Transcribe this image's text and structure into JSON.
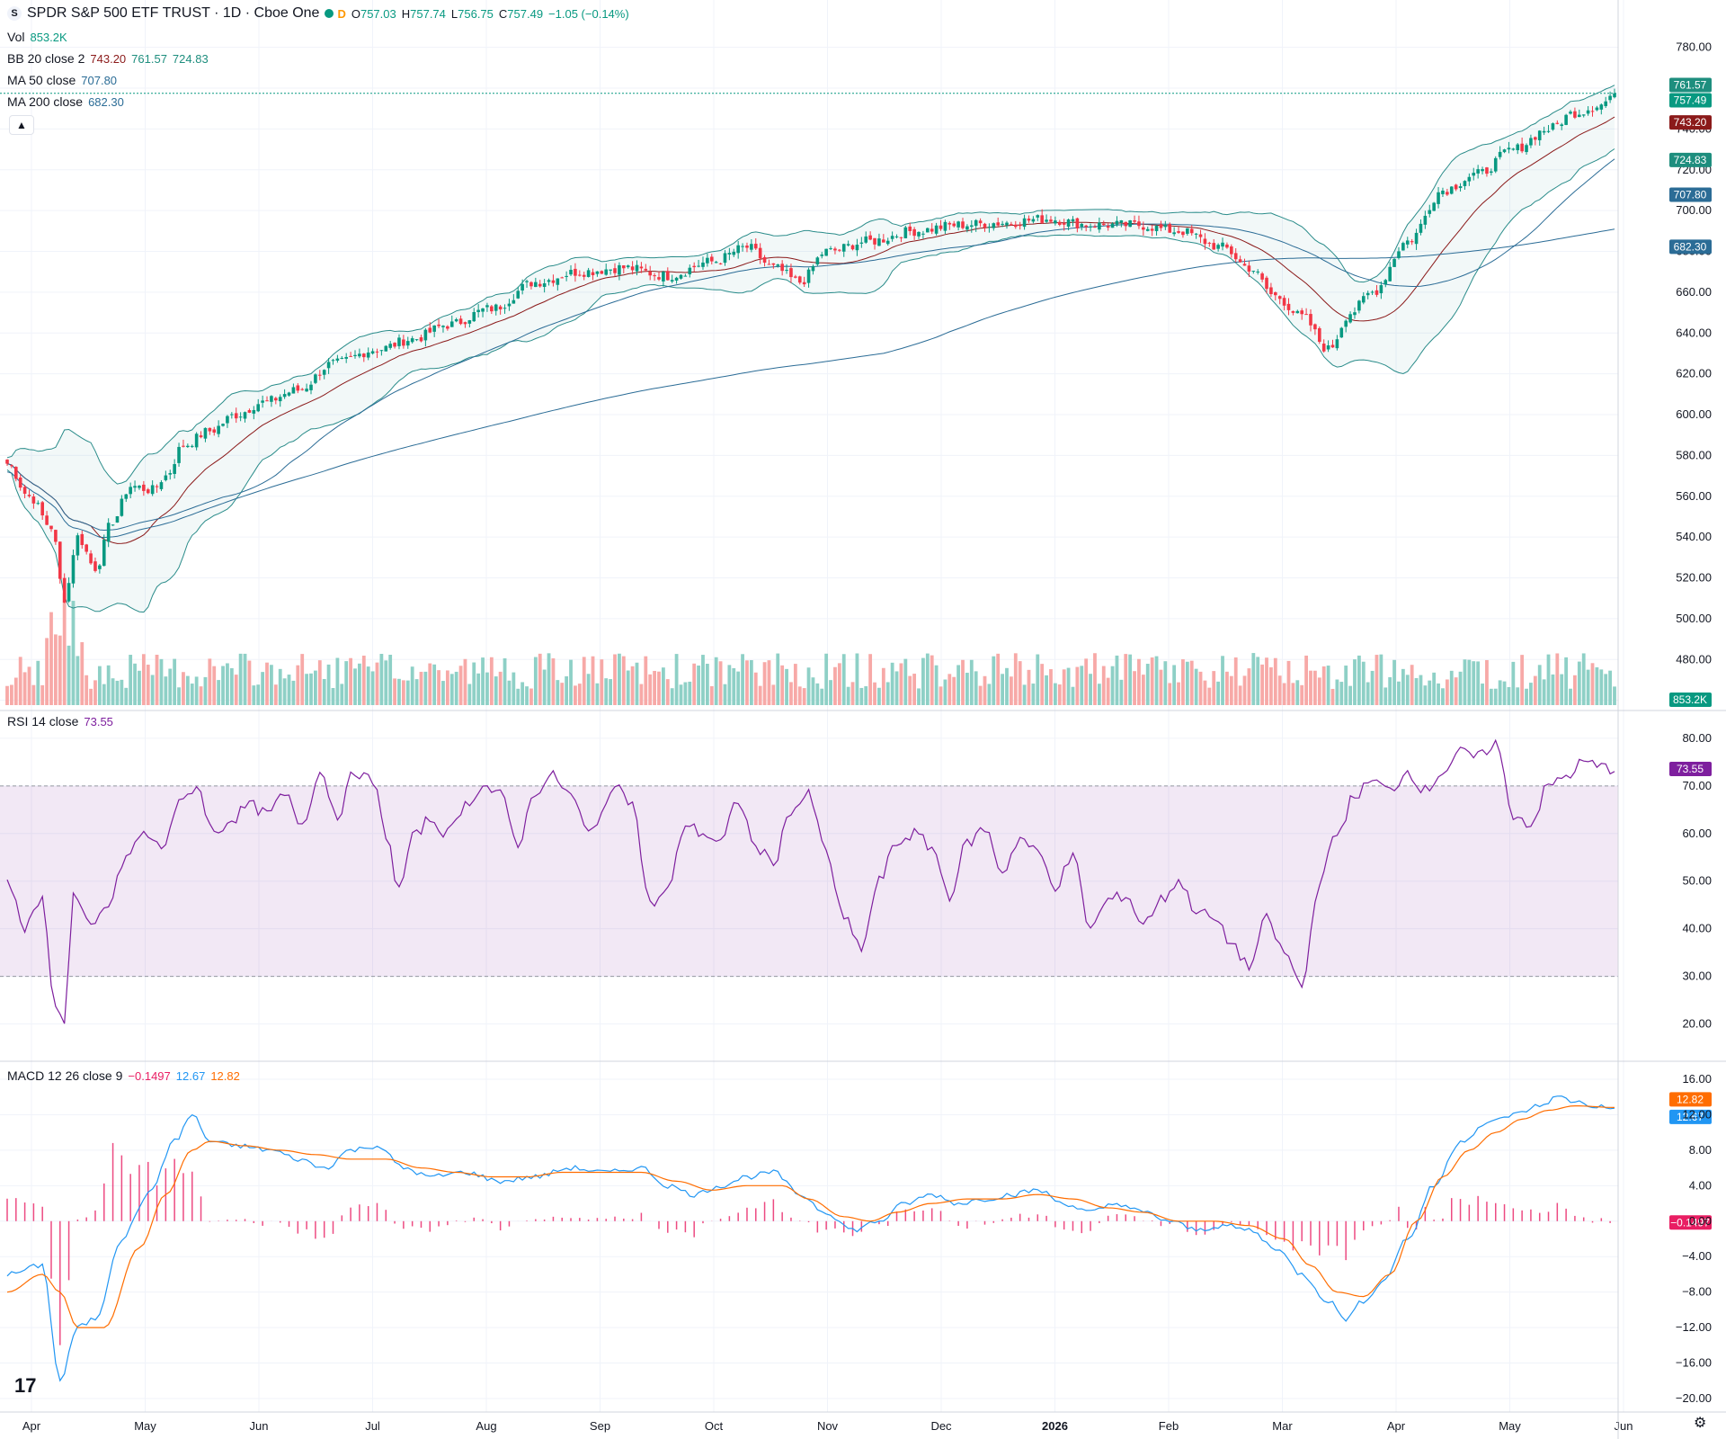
{
  "header": {
    "symbol_logo": "S",
    "title": "SPDR S&P 500 ETF TRUST · 1D · Cboe One",
    "badge": "D",
    "ohlc": {
      "o_label": "O",
      "o": "757.03",
      "h_label": "H",
      "h": "757.74",
      "l_label": "L",
      "l": "756.75",
      "c_label": "C",
      "c": "757.49",
      "chg": "−1.05 (−0.14%)"
    },
    "vol_label": "Vol",
    "vol_value": "853.2K",
    "bb_label": "BB 20 close 2",
    "bb_mid": "743.20",
    "bb_up": "761.57",
    "bb_low": "724.83",
    "ma50_label": "MA 50 close",
    "ma50_value": "707.80",
    "ma200_label": "MA 200 close",
    "ma200_value": "682.30",
    "rsi_label": "RSI 14 close",
    "rsi_value": "73.55",
    "macd_label": "MACD 12 26 close 9",
    "macd_hist": "−0.1497",
    "macd_line": "12.67",
    "macd_signal": "12.82",
    "collapse_icon": "chevron-up-icon"
  },
  "colors": {
    "up": "#089981",
    "down": "#f23645",
    "vol_up": "#8ed0c6",
    "vol_down": "#f7a9a7",
    "bb_band": "#2a8c8a",
    "bb_basis": "#8b1a1a",
    "ma50": "#2b6c96",
    "ma200": "#2b6c96",
    "rsi": "#7e1f9e",
    "macd": "#2196f3",
    "signal": "#ff6d00",
    "hist_pos": "#e91e63",
    "hist_neg": "#e91e63"
  },
  "chart_data": [
    {
      "type": "candlestick",
      "title": "SPDR S&P 500 ETF TRUST · 1D · Cboe One",
      "x_labels": [
        "Apr",
        "May",
        "Jun",
        "Jul",
        "Aug",
        "Sep",
        "Oct",
        "Nov",
        "Dec",
        "2026",
        "Feb",
        "Mar",
        "Apr",
        "May",
        "Jun"
      ],
      "price_ticks": [
        "780.00",
        "760.00",
        "740.00",
        "720.00",
        "700.00",
        "680.00",
        "660.00",
        "640.00",
        "620.00",
        "600.00",
        "580.00",
        "560.00",
        "540.00",
        "520.00",
        "500.00",
        "480.00",
        "460.00"
      ],
      "ylim": [
        460,
        790
      ],
      "close_anchors": [
        [
          0,
          576
        ],
        [
          5,
          560
        ],
        [
          10,
          545
        ],
        [
          13,
          510
        ],
        [
          16,
          540
        ],
        [
          20,
          525
        ],
        [
          24,
          548
        ],
        [
          28,
          565
        ],
        [
          33,
          563
        ],
        [
          36,
          570
        ],
        [
          40,
          585
        ],
        [
          46,
          592
        ],
        [
          52,
          600
        ],
        [
          58,
          606
        ],
        [
          66,
          612
        ],
        [
          74,
          625
        ],
        [
          84,
          632
        ],
        [
          92,
          637
        ],
        [
          100,
          644
        ],
        [
          110,
          652
        ],
        [
          120,
          665
        ],
        [
          130,
          670
        ],
        [
          140,
          672
        ],
        [
          150,
          668
        ],
        [
          160,
          675
        ],
        [
          168,
          682
        ],
        [
          174,
          672
        ],
        [
          180,
          665
        ],
        [
          186,
          680
        ],
        [
          196,
          685
        ],
        [
          206,
          690
        ],
        [
          216,
          693
        ],
        [
          226,
          694
        ],
        [
          236,
          696
        ],
        [
          246,
          693
        ],
        [
          256,
          693
        ],
        [
          266,
          690
        ],
        [
          276,
          682
        ],
        [
          282,
          672
        ],
        [
          288,
          658
        ],
        [
          294,
          648
        ],
        [
          300,
          632
        ],
        [
          305,
          650
        ],
        [
          310,
          660
        ],
        [
          318,
          685
        ],
        [
          326,
          710
        ],
        [
          334,
          718
        ],
        [
          342,
          730
        ],
        [
          350,
          740
        ],
        [
          356,
          748
        ],
        [
          362,
          752
        ],
        [
          365,
          757.49
        ]
      ],
      "price_labels": [
        {
          "name": "BB upper",
          "value": "761.57",
          "price": 761.57,
          "color": "#1e8e7e"
        },
        {
          "name": "Last",
          "value": "757.49",
          "price": 757.49,
          "color": "#089981"
        },
        {
          "name": "BB basis",
          "value": "743.20",
          "price": 743.2,
          "color": "#8b1a1a"
        },
        {
          "name": "BB lower",
          "value": "724.83",
          "price": 724.83,
          "color": "#1e8e7e"
        },
        {
          "name": "MA 50",
          "value": "707.80",
          "price": 707.8,
          "color": "#2b6c96"
        },
        {
          "name": "MA 200",
          "value": "682.30",
          "price": 682.3,
          "color": "#2b6c96"
        }
      ],
      "volume_label": "853.2K"
    },
    {
      "type": "line",
      "name": "RSI 14 close",
      "ticks": [
        "80.00",
        "70.00",
        "60.00",
        "50.00",
        "40.00",
        "30.00",
        "20.00"
      ],
      "ylim": [
        15,
        83
      ],
      "bands": [
        70,
        30
      ],
      "value_label": "73.55",
      "anchors": [
        [
          0,
          50
        ],
        [
          4,
          40
        ],
        [
          8,
          46
        ],
        [
          11,
          23
        ],
        [
          13,
          21
        ],
        [
          15,
          47
        ],
        [
          19,
          40
        ],
        [
          23,
          45
        ],
        [
          27,
          55
        ],
        [
          31,
          60
        ],
        [
          35,
          57
        ],
        [
          39,
          66
        ],
        [
          43,
          70
        ],
        [
          47,
          60
        ],
        [
          51,
          63
        ],
        [
          55,
          66
        ],
        [
          59,
          64
        ],
        [
          63,
          68
        ],
        [
          67,
          62
        ],
        [
          71,
          73
        ],
        [
          75,
          64
        ],
        [
          79,
          73
        ],
        [
          83,
          71
        ],
        [
          86,
          60
        ],
        [
          89,
          48
        ],
        [
          92,
          59
        ],
        [
          96,
          63
        ],
        [
          100,
          60
        ],
        [
          104,
          66
        ],
        [
          108,
          70
        ],
        [
          112,
          68
        ],
        [
          116,
          58
        ],
        [
          120,
          69
        ],
        [
          124,
          72
        ],
        [
          128,
          68
        ],
        [
          132,
          60
        ],
        [
          136,
          66
        ],
        [
          139,
          71
        ],
        [
          142,
          66
        ],
        [
          146,
          45
        ],
        [
          150,
          48
        ],
        [
          154,
          62
        ],
        [
          158,
          60
        ],
        [
          162,
          58
        ],
        [
          166,
          67
        ],
        [
          170,
          57
        ],
        [
          174,
          54
        ],
        [
          178,
          65
        ],
        [
          182,
          68
        ],
        [
          186,
          56
        ],
        [
          190,
          42
        ],
        [
          194,
          36
        ],
        [
          198,
          50
        ],
        [
          202,
          58
        ],
        [
          206,
          60
        ],
        [
          210,
          57
        ],
        [
          214,
          47
        ],
        [
          218,
          58
        ],
        [
          222,
          61
        ],
        [
          226,
          52
        ],
        [
          230,
          59
        ],
        [
          234,
          56
        ],
        [
          238,
          49
        ],
        [
          242,
          55
        ],
        [
          246,
          40
        ],
        [
          250,
          46
        ],
        [
          254,
          47
        ],
        [
          258,
          41
        ],
        [
          262,
          46
        ],
        [
          266,
          50
        ],
        [
          270,
          44
        ],
        [
          274,
          42
        ],
        [
          278,
          37
        ],
        [
          282,
          32
        ],
        [
          286,
          42
        ],
        [
          290,
          35
        ],
        [
          294,
          28
        ],
        [
          298,
          50
        ],
        [
          302,
          60
        ],
        [
          306,
          68
        ],
        [
          310,
          71
        ],
        [
          314,
          69
        ],
        [
          318,
          73
        ],
        [
          322,
          69
        ],
        [
          326,
          73
        ],
        [
          330,
          77
        ],
        [
          334,
          76
        ],
        [
          338,
          79
        ],
        [
          342,
          64
        ],
        [
          346,
          62
        ],
        [
          350,
          70
        ],
        [
          354,
          72
        ],
        [
          358,
          75
        ],
        [
          362,
          74
        ],
        [
          365,
          73.55
        ]
      ]
    },
    {
      "type": "line",
      "name": "MACD 12 26 close 9",
      "ticks": [
        "16.00",
        "12.00",
        "8.00",
        "4.00",
        "0.00",
        "−4.00",
        "−8.00",
        "−12.00",
        "−16.00",
        "−20.00"
      ],
      "ylim": [
        -20,
        16
      ],
      "labels": {
        "signal": "12.82",
        "macd": "12.67",
        "hist": "−0.1497"
      },
      "macd_anchors": [
        [
          0,
          -6
        ],
        [
          8,
          -5
        ],
        [
          12,
          -18
        ],
        [
          16,
          -12
        ],
        [
          20,
          -11
        ],
        [
          26,
          -2
        ],
        [
          32,
          3
        ],
        [
          38,
          9
        ],
        [
          42,
          12
        ],
        [
          46,
          9
        ],
        [
          52,
          8.5
        ],
        [
          60,
          8
        ],
        [
          66,
          7
        ],
        [
          72,
          6
        ],
        [
          78,
          8
        ],
        [
          84,
          8.5
        ],
        [
          90,
          6
        ],
        [
          96,
          5
        ],
        [
          104,
          5.5
        ],
        [
          112,
          4.5
        ],
        [
          120,
          5
        ],
        [
          128,
          6
        ],
        [
          136,
          5.5
        ],
        [
          144,
          6
        ],
        [
          150,
          4
        ],
        [
          156,
          3
        ],
        [
          162,
          4
        ],
        [
          168,
          5
        ],
        [
          174,
          5.5
        ],
        [
          180,
          3
        ],
        [
          186,
          1
        ],
        [
          192,
          -1
        ],
        [
          198,
          0
        ],
        [
          204,
          2
        ],
        [
          210,
          3
        ],
        [
          216,
          2
        ],
        [
          222,
          2.5
        ],
        [
          228,
          3
        ],
        [
          234,
          3.5
        ],
        [
          240,
          2
        ],
        [
          246,
          1
        ],
        [
          252,
          2
        ],
        [
          258,
          1
        ],
        [
          264,
          0
        ],
        [
          270,
          -1
        ],
        [
          276,
          -0.5
        ],
        [
          282,
          -1
        ],
        [
          288,
          -3
        ],
        [
          294,
          -6
        ],
        [
          300,
          -9
        ],
        [
          304,
          -11
        ],
        [
          308,
          -9
        ],
        [
          312,
          -7
        ],
        [
          318,
          -2
        ],
        [
          324,
          4
        ],
        [
          330,
          9
        ],
        [
          336,
          11
        ],
        [
          342,
          12
        ],
        [
          348,
          13
        ],
        [
          352,
          14
        ],
        [
          356,
          13.5
        ],
        [
          360,
          13
        ],
        [
          365,
          12.67
        ]
      ],
      "signal_anchors": [
        [
          0,
          -8
        ],
        [
          8,
          -6
        ],
        [
          12,
          -8
        ],
        [
          16,
          -12
        ],
        [
          22,
          -12
        ],
        [
          30,
          -3
        ],
        [
          36,
          3
        ],
        [
          42,
          8
        ],
        [
          46,
          9
        ],
        [
          54,
          8.5
        ],
        [
          62,
          8
        ],
        [
          70,
          7.5
        ],
        [
          78,
          7
        ],
        [
          86,
          7
        ],
        [
          94,
          6
        ],
        [
          102,
          5.5
        ],
        [
          110,
          5
        ],
        [
          118,
          5
        ],
        [
          126,
          5.5
        ],
        [
          134,
          5.5
        ],
        [
          144,
          5.5
        ],
        [
          152,
          4.5
        ],
        [
          160,
          3.5
        ],
        [
          168,
          4
        ],
        [
          176,
          4
        ],
        [
          182,
          2.5
        ],
        [
          190,
          0.5
        ],
        [
          196,
          0
        ],
        [
          202,
          1
        ],
        [
          210,
          2
        ],
        [
          218,
          2.5
        ],
        [
          226,
          2.5
        ],
        [
          234,
          3
        ],
        [
          242,
          2.5
        ],
        [
          250,
          1.5
        ],
        [
          258,
          1
        ],
        [
          266,
          0
        ],
        [
          274,
          0
        ],
        [
          282,
          -0.5
        ],
        [
          290,
          -2
        ],
        [
          296,
          -5
        ],
        [
          302,
          -8
        ],
        [
          308,
          -8.5
        ],
        [
          314,
          -6
        ],
        [
          320,
          0
        ],
        [
          326,
          5
        ],
        [
          332,
          8
        ],
        [
          338,
          10
        ],
        [
          344,
          11.5
        ],
        [
          350,
          12.5
        ],
        [
          356,
          13
        ],
        [
          365,
          12.82
        ]
      ]
    }
  ]
}
